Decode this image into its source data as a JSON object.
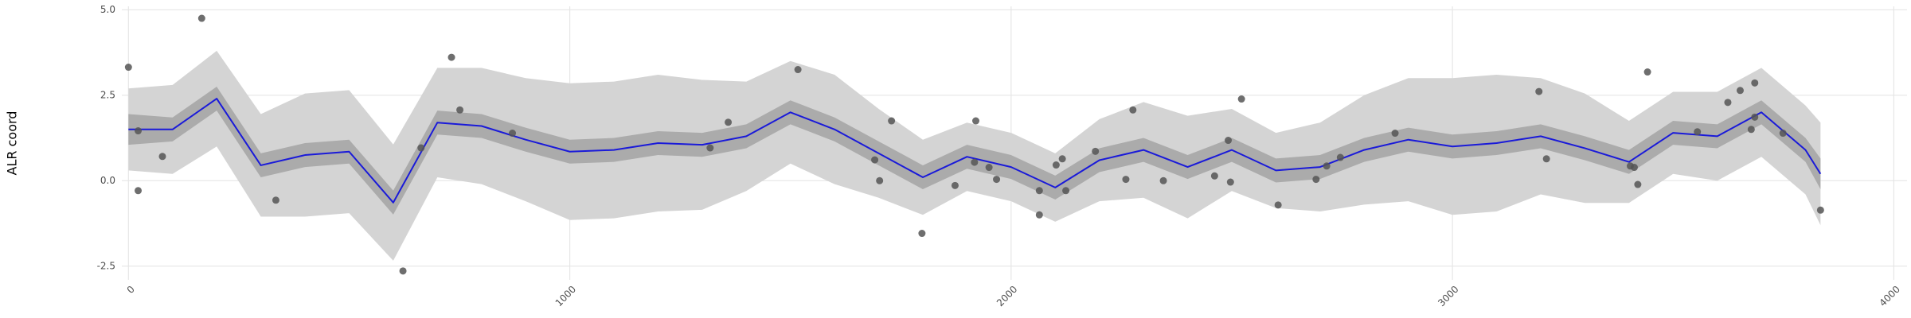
{
  "chart_data": {
    "type": "scatter",
    "ylabel": "ALR coord",
    "xlim": [
      -15,
      4030
    ],
    "ylim": [
      -2.9,
      5.1
    ],
    "xticks": [
      0,
      1000,
      2000,
      3000,
      4000
    ],
    "yticks": [
      -2.5,
      {
        "value": 0,
        "label": "0.0"
      },
      2.5,
      {
        "value": 5,
        "label": "5.0"
      }
    ],
    "grid": true,
    "point_color": "#555555",
    "x": [
      0,
      22,
      22,
      77,
      166,
      334,
      622,
      663,
      732,
      751,
      870,
      1318,
      1359,
      1517,
      1691,
      1702,
      1729,
      1798,
      1873,
      1920,
      1917,
      1950,
      1967,
      2064,
      2064,
      2102,
      2116,
      2124,
      2191,
      2260,
      2276,
      2345,
      2461,
      2492,
      2497,
      2522,
      2605,
      2691,
      2715,
      2746,
      2870,
      3196,
      3213,
      3403,
      3412,
      3420,
      3442,
      3555,
      3624,
      3652,
      3677,
      3685,
      3685,
      3749,
      3834
    ],
    "y": [
      3.32,
      1.46,
      -0.29,
      0.71,
      4.75,
      -0.57,
      -2.64,
      0.96,
      3.61,
      2.07,
      1.39,
      0.96,
      1.71,
      3.25,
      0.61,
      0.0,
      1.75,
      -1.54,
      -0.14,
      1.75,
      0.54,
      0.39,
      0.04,
      -0.29,
      -1.0,
      0.46,
      0.64,
      -0.29,
      0.86,
      0.04,
      2.07,
      0.0,
      0.14,
      1.18,
      -0.04,
      2.39,
      -0.71,
      0.04,
      0.43,
      0.68,
      1.39,
      2.61,
      0.64,
      0.43,
      0.39,
      -0.11,
      3.18,
      1.43,
      2.29,
      2.64,
      1.5,
      2.86,
      1.86,
      1.39,
      -0.86
    ],
    "fit": {
      "color": "#1a1ad9",
      "x": [
        0,
        100,
        200,
        300,
        400,
        500,
        600,
        700,
        800,
        900,
        1000,
        1100,
        1200,
        1300,
        1400,
        1500,
        1600,
        1700,
        1800,
        1900,
        2000,
        2100,
        2200,
        2300,
        2400,
        2500,
        2600,
        2700,
        2800,
        2900,
        3000,
        3100,
        3200,
        3300,
        3400,
        3500,
        3600,
        3700,
        3800,
        3834
      ],
      "values": [
        1.5,
        1.5,
        2.4,
        0.45,
        0.75,
        0.85,
        -0.64,
        1.7,
        1.6,
        1.2,
        0.85,
        0.9,
        1.1,
        1.05,
        1.3,
        2.0,
        1.5,
        0.8,
        0.1,
        0.7,
        0.4,
        -0.2,
        0.6,
        0.9,
        0.4,
        0.9,
        0.3,
        0.4,
        0.9,
        1.2,
        1.0,
        1.1,
        1.3,
        0.95,
        0.55,
        1.4,
        1.3,
        2.0,
        0.9,
        0.2
      ]
    },
    "bands": [
      {
        "color": "#d4d4d4",
        "lower": [
          0.3,
          0.2,
          1.0,
          -1.05,
          -1.05,
          -0.95,
          -2.34,
          0.1,
          -0.1,
          -0.6,
          -1.15,
          -1.1,
          -0.9,
          -0.85,
          -0.3,
          0.5,
          -0.1,
          -0.5,
          -1.0,
          -0.3,
          -0.6,
          -1.2,
          -0.6,
          -0.5,
          -1.1,
          -0.3,
          -0.8,
          -0.9,
          -0.7,
          -0.6,
          -1.0,
          -0.9,
          -0.4,
          -0.65,
          -0.65,
          0.2,
          0.0,
          0.7,
          -0.4,
          -1.3
        ],
        "upper": [
          2.7,
          2.8,
          3.8,
          1.95,
          2.55,
          2.65,
          1.06,
          3.3,
          3.3,
          3.0,
          2.85,
          2.9,
          3.1,
          2.95,
          2.9,
          3.5,
          3.1,
          2.1,
          1.2,
          1.7,
          1.4,
          0.8,
          1.8,
          2.3,
          1.9,
          2.1,
          1.4,
          1.7,
          2.5,
          3.0,
          3.0,
          3.1,
          3.0,
          2.55,
          1.75,
          2.6,
          2.6,
          3.3,
          2.2,
          1.7
        ]
      },
      {
        "color": "#ababab",
        "lower": [
          1.05,
          1.15,
          2.05,
          0.1,
          0.4,
          0.5,
          -0.99,
          1.35,
          1.25,
          0.85,
          0.5,
          0.55,
          0.75,
          0.7,
          0.95,
          1.65,
          1.15,
          0.45,
          -0.25,
          0.35,
          0.05,
          -0.55,
          0.25,
          0.55,
          0.05,
          0.55,
          -0.05,
          0.05,
          0.55,
          0.85,
          0.65,
          0.75,
          0.95,
          0.6,
          0.2,
          1.05,
          0.95,
          1.65,
          0.55,
          -0.25
        ],
        "upper": [
          1.95,
          1.85,
          2.75,
          0.8,
          1.1,
          1.2,
          -0.29,
          2.05,
          1.95,
          1.55,
          1.2,
          1.25,
          1.45,
          1.4,
          1.65,
          2.35,
          1.85,
          1.15,
          0.45,
          1.05,
          0.75,
          0.15,
          0.95,
          1.25,
          0.75,
          1.25,
          0.65,
          0.75,
          1.25,
          1.55,
          1.35,
          1.45,
          1.65,
          1.3,
          0.9,
          1.75,
          1.65,
          2.35,
          1.25,
          0.65
        ]
      }
    ]
  }
}
